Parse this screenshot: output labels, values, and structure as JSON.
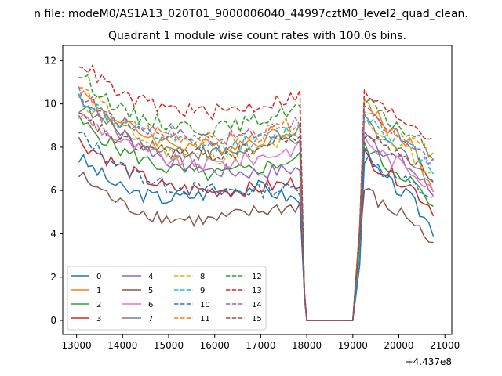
{
  "figure": {
    "suptitle": "n file: modeM0/AS1A13_020T01_9000006040_44997cztM0_level2_quad_clean.",
    "title": "Quadrant 1 module wise count rates with 100.0s bins.",
    "x_offset_label": "+4.437e8"
  },
  "chart_data": {
    "type": "line",
    "title": "Quadrant 1 module wise count rates with 100.0s bins.",
    "xlabel": "",
    "ylabel": "",
    "x_offset": 443700000,
    "xlim": [
      12700,
      21150
    ],
    "ylim": [
      -0.65,
      12.7
    ],
    "xticks": [
      13000,
      14000,
      15000,
      16000,
      17000,
      18000,
      19000,
      20000,
      21000
    ],
    "xtick_labels": [
      "13000",
      "14000",
      "15000",
      "16000",
      "17000",
      "18000",
      "19000",
      "20000",
      "21000"
    ],
    "yticks": [
      0,
      2,
      4,
      6,
      8,
      10,
      12
    ],
    "ytick_labels": [
      "0",
      "2",
      "4",
      "6",
      "8",
      "10",
      "12"
    ],
    "grid": false,
    "legend_position": "lower-left",
    "gap": {
      "start": 18000,
      "end": 19050,
      "value": 0
    },
    "segment1": {
      "start": 13050,
      "end": 17850
    },
    "segment2": {
      "start": 19150,
      "end": 20750
    },
    "series": [
      {
        "name": "0",
        "color": "#1f77b4",
        "dash": "solid",
        "seg1": [
          7.5,
          6.0,
          5.6,
          5.9,
          6.2,
          5.5
        ],
        "seg2": [
          7.8,
          6.5,
          5.7,
          4.2
        ]
      },
      {
        "name": "1",
        "color": "#ff7f0e",
        "dash": "solid",
        "seg1": [
          10.6,
          9.0,
          8.2,
          8.0,
          8.3,
          9.0
        ],
        "seg2": [
          10.6,
          9.0,
          8.3,
          6.0
        ]
      },
      {
        "name": "2",
        "color": "#2ca02c",
        "dash": "solid",
        "seg1": [
          9.2,
          7.8,
          7.0,
          6.7,
          7.0,
          7.5
        ],
        "seg2": [
          8.4,
          7.2,
          6.6,
          5.1
        ]
      },
      {
        "name": "3",
        "color": "#d62728",
        "dash": "solid",
        "seg1": [
          8.3,
          7.0,
          6.1,
          6.0,
          6.1,
          6.4
        ],
        "seg2": [
          7.8,
          6.9,
          6.3,
          5.1
        ]
      },
      {
        "name": "4",
        "color": "#9467bd",
        "dash": "solid",
        "seg1": [
          10.4,
          8.6,
          7.4,
          6.9,
          6.8,
          7.0
        ],
        "seg2": [
          9.2,
          7.8,
          7.1,
          5.8
        ]
      },
      {
        "name": "5",
        "color": "#8c564b",
        "dash": "solid",
        "seg1": [
          6.7,
          5.3,
          4.7,
          4.6,
          5.0,
          5.3
        ],
        "seg2": [
          6.3,
          5.2,
          4.8,
          3.4
        ]
      },
      {
        "name": "6",
        "color": "#e377c2",
        "dash": "solid",
        "seg1": [
          9.5,
          8.2,
          7.4,
          7.2,
          7.5,
          8.0
        ],
        "seg2": [
          8.6,
          7.6,
          7.0,
          6.2
        ]
      },
      {
        "name": "7",
        "color": "#7f7f7f",
        "dash": "solid",
        "seg1": [
          9.9,
          8.6,
          7.9,
          7.7,
          7.9,
          8.5
        ],
        "seg2": [
          9.4,
          8.2,
          7.6,
          6.4
        ]
      },
      {
        "name": "8",
        "color": "#bcbd22",
        "dash": "dashed",
        "seg1": [
          10.2,
          8.8,
          7.8,
          7.5,
          7.8,
          8.5
        ],
        "seg2": [
          9.6,
          8.4,
          7.8,
          6.7
        ]
      },
      {
        "name": "9",
        "color": "#17becf",
        "dash": "dashed",
        "seg1": [
          10.3,
          9.0,
          8.3,
          8.0,
          8.2,
          8.9
        ],
        "seg2": [
          9.8,
          8.7,
          8.0,
          7.0
        ]
      },
      {
        "name": "10",
        "color": "#1f77b4",
        "dash": "dashed",
        "seg1": [
          8.6,
          7.0,
          6.2,
          6.0,
          6.0,
          6.1
        ],
        "seg2": [
          8.0,
          6.9,
          6.3,
          5.7
        ]
      },
      {
        "name": "11",
        "color": "#ff7f0e",
        "dash": "dashed",
        "seg1": [
          10.8,
          9.1,
          8.6,
          8.3,
          8.5,
          9.2
        ],
        "seg2": [
          10.2,
          9.0,
          8.5,
          7.5
        ]
      },
      {
        "name": "12",
        "color": "#2ca02c",
        "dash": "dashed",
        "seg1": [
          11.4,
          9.6,
          9.1,
          8.8,
          9.2,
          9.9
        ],
        "seg2": [
          10.4,
          9.3,
          8.7,
          7.6
        ]
      },
      {
        "name": "13",
        "color": "#d62728",
        "dash": "dashed",
        "seg1": [
          12.0,
          10.3,
          9.8,
          9.6,
          9.9,
          10.4
        ],
        "seg2": [
          10.8,
          9.7,
          9.2,
          8.4
        ]
      },
      {
        "name": "14",
        "color": "#9467bd",
        "dash": "dashed",
        "seg1": [
          10.5,
          9.1,
          8.7,
          8.4,
          8.6,
          9.3
        ],
        "seg2": [
          9.9,
          8.8,
          8.3,
          7.2
        ]
      },
      {
        "name": "15",
        "color": "#8c564b",
        "dash": "dashed",
        "seg1": [
          9.4,
          8.2,
          7.8,
          7.6,
          7.9,
          8.6
        ],
        "seg2": [
          8.9,
          8.0,
          7.6,
          6.6
        ]
      }
    ]
  }
}
